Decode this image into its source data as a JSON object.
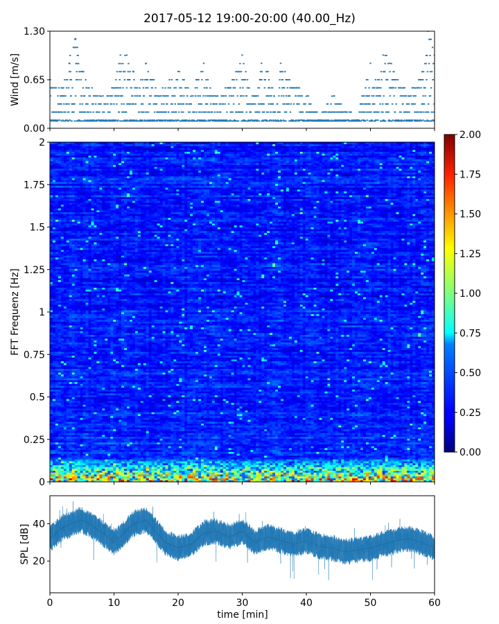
{
  "title": "2017-05-12 19:00-20:00 (40.00_Hz)",
  "colors": {
    "series": "#1f77b4",
    "axis": "#000000",
    "background": "#ffffff"
  },
  "chart_data": [
    {
      "type": "scatter",
      "name": "wind",
      "ylabel": "Wind [m/s]",
      "xlim": [
        0,
        60
      ],
      "ylim": [
        0,
        1.3
      ],
      "yticks": [
        "0.00",
        "0.65",
        "1.30"
      ],
      "ytick_values": [
        0,
        0.65,
        1.3
      ],
      "xticks": [
        0,
        10,
        20,
        30,
        40,
        50,
        60
      ],
      "quantization_step": 0.1083,
      "envelope": {
        "x": [
          0,
          2,
          3,
          4,
          5,
          6,
          8,
          10,
          11,
          12,
          13,
          14,
          15,
          16,
          17,
          18,
          20,
          22,
          24,
          25,
          26,
          28,
          30,
          31,
          32,
          33,
          34,
          35,
          36,
          37,
          38,
          40,
          42,
          43,
          44,
          46,
          48,
          50,
          51,
          52,
          53,
          54,
          55,
          56,
          57,
          58,
          59,
          60
        ],
        "y": [
          0.65,
          0.54,
          0.87,
          1.2,
          0.76,
          0.54,
          0.43,
          0.54,
          0.98,
          0.98,
          0.76,
          0.54,
          0.87,
          0.65,
          0.43,
          0.54,
          0.76,
          0.43,
          0.87,
          0.54,
          0.43,
          0.54,
          0.98,
          0.54,
          0.43,
          0.87,
          0.76,
          0.43,
          0.87,
          0.65,
          0.54,
          0.43,
          0.11,
          0.22,
          0.43,
          0.22,
          0.11,
          0.87,
          0.54,
          0.98,
          0.87,
          0.65,
          0.54,
          0.43,
          0.54,
          0.65,
          1.3,
          0.98
        ]
      }
    },
    {
      "type": "heatmap",
      "name": "spectrogram",
      "ylabel": "FFT Frequenz [Hz]",
      "xlim": [
        0,
        60
      ],
      "ylim": [
        0,
        2
      ],
      "yticks": [
        "0",
        "0.25",
        "0.5",
        "0.75",
        "1",
        "1.25",
        "1.5",
        "1.75",
        "2"
      ],
      "ytick_values": [
        0,
        0.25,
        0.5,
        0.75,
        1,
        1.25,
        1.5,
        1.75,
        2
      ],
      "color_range": [
        0,
        2
      ],
      "colormap": "jet",
      "colorbar_ticks": [
        "0.00",
        "0.25",
        "0.50",
        "0.75",
        "1.00",
        "1.25",
        "1.50",
        "1.75",
        "2.00"
      ],
      "colorbar_tick_values": [
        0,
        0.25,
        0.5,
        0.75,
        1,
        1.25,
        1.5,
        1.75,
        2
      ],
      "typical_value": 0.3,
      "low_frequency_band": {
        "frequency_max": 0.15,
        "value_range": [
          0.8,
          2.0
        ]
      }
    },
    {
      "type": "line",
      "name": "spl",
      "ylabel": "SPL [dB]",
      "xlabel": "time [min]",
      "xlim": [
        0,
        60
      ],
      "ylim": [
        3,
        55
      ],
      "yticks": [
        "20",
        "40"
      ],
      "ytick_values": [
        20,
        40
      ],
      "xticks": [
        "0",
        "10",
        "20",
        "30",
        "40",
        "50",
        "60"
      ],
      "xtick_values": [
        0,
        10,
        20,
        30,
        40,
        50,
        60
      ],
      "x": [
        0,
        2,
        4,
        5,
        7,
        9,
        10,
        11,
        13,
        15,
        16,
        18,
        20,
        22,
        24,
        26,
        28,
        30,
        32,
        34,
        36,
        38,
        40,
        42,
        44,
        46,
        48,
        50,
        52,
        54,
        56,
        58,
        60
      ],
      "mean": [
        32,
        38,
        41,
        42,
        38,
        33,
        30,
        33,
        40,
        42,
        38,
        30,
        27,
        29,
        35,
        36,
        33,
        36,
        30,
        33,
        31,
        29,
        31,
        28,
        27,
        25,
        26,
        27,
        29,
        31,
        32,
        30,
        27
      ],
      "band_halfwidth": 6
    }
  ]
}
